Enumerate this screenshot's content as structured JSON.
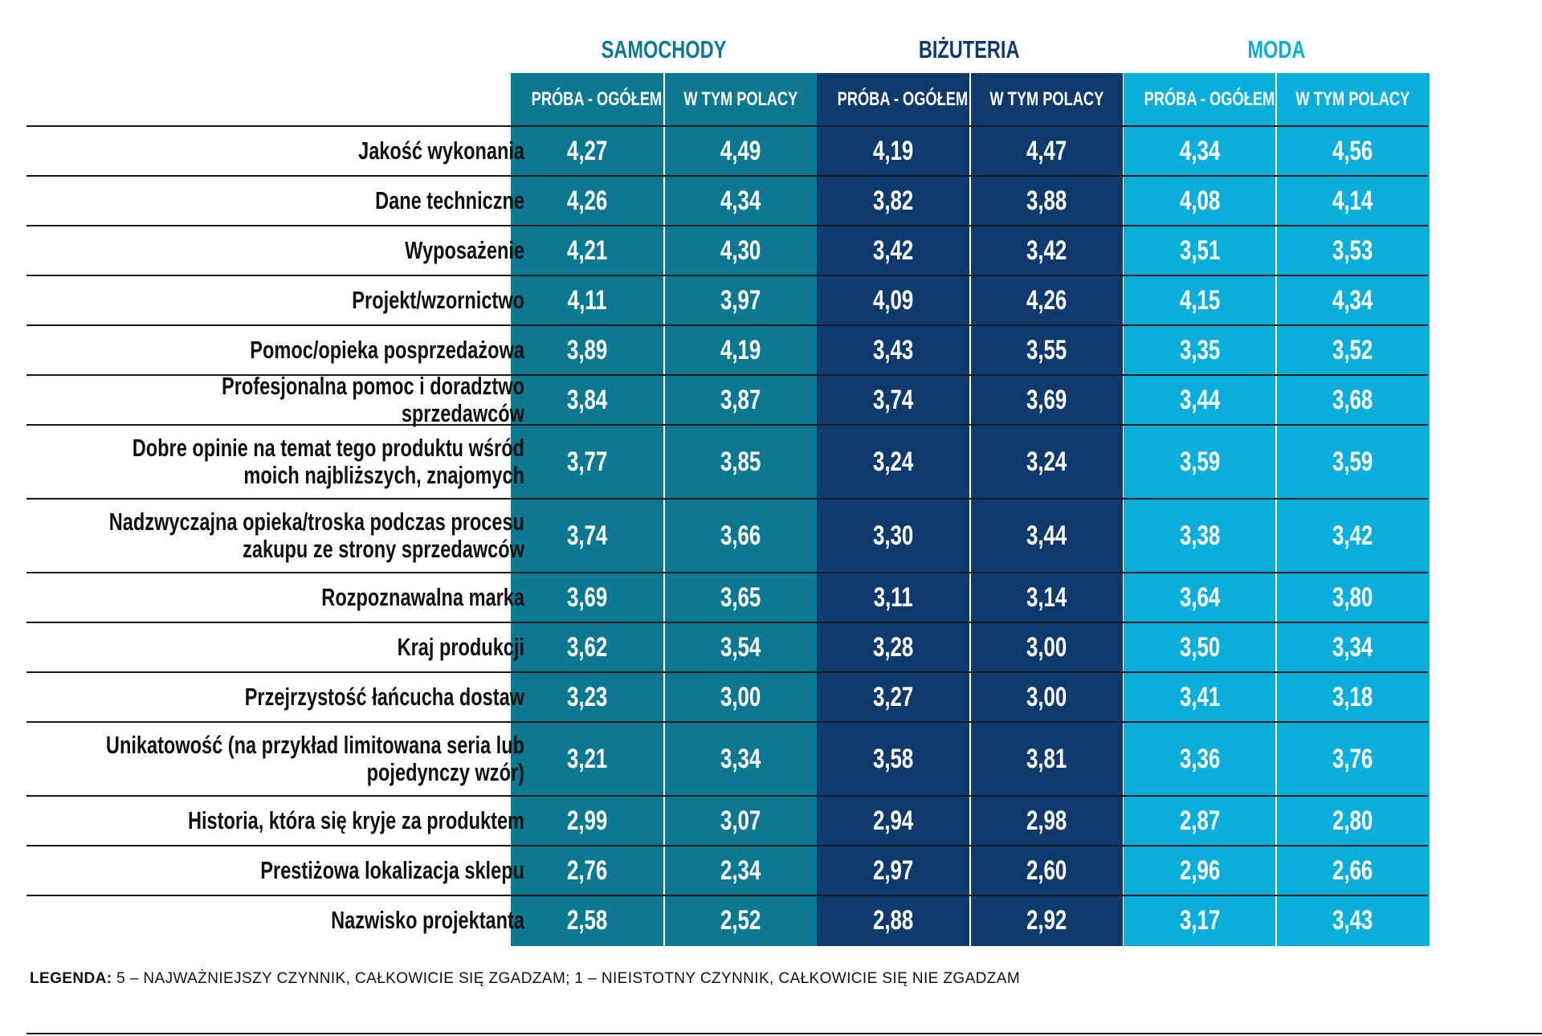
{
  "groups": [
    {
      "title": "SAMOCHODY",
      "color": "#0c7891",
      "title_color": "#0c7891"
    },
    {
      "title": "BIŻUTERIA",
      "color": "#0f3a6b",
      "title_color": "#0f3a6b"
    },
    {
      "title": "MODA",
      "color": "#0aaedb",
      "title_color": "#0aaedb"
    }
  ],
  "sub_headers": [
    "PRÓBA - OGÓŁEM",
    "W TYM POLACY"
  ],
  "chart_data": {
    "type": "table",
    "columns": [
      "SAMOCHODY / PRÓBA - OGÓŁEM",
      "SAMOCHODY / W TYM POLACY",
      "BIŻUTERIA / PRÓBA - OGÓŁEM",
      "BIŻUTERIA / W TYM POLACY",
      "MODA / PRÓBA - OGÓŁEM",
      "MODA / W TYM POLACY"
    ],
    "rows": [
      {
        "label": "Jakość wykonania",
        "values": [
          "4,27",
          "4,49",
          "4,19",
          "4,47",
          "4,34",
          "4,56"
        ]
      },
      {
        "label": "Dane techniczne",
        "values": [
          "4,26",
          "4,34",
          "3,82",
          "3,88",
          "4,08",
          "4,14"
        ]
      },
      {
        "label": "Wyposażenie",
        "values": [
          "4,21",
          "4,30",
          "3,42",
          "3,42",
          "3,51",
          "3,53"
        ]
      },
      {
        "label": "Projekt/wzornictwo",
        "values": [
          "4,11",
          "3,97",
          "4,09",
          "4,26",
          "4,15",
          "4,34"
        ]
      },
      {
        "label": "Pomoc/opieka posprzedażowa",
        "values": [
          "3,89",
          "4,19",
          "3,43",
          "3,55",
          "3,35",
          "3,52"
        ]
      },
      {
        "label": "Profesjonalna pomoc i doradztwo sprzedawców",
        "values": [
          "3,84",
          "3,87",
          "3,74",
          "3,69",
          "3,44",
          "3,68"
        ]
      },
      {
        "label": "Dobre opinie na temat tego produktu wśród moich najbliższych, znajomych",
        "values": [
          "3,77",
          "3,85",
          "3,24",
          "3,24",
          "3,59",
          "3,59"
        ]
      },
      {
        "label": "Nadzwyczajna opieka/troska podczas procesu zakupu ze strony sprzedawców",
        "values": [
          "3,74",
          "3,66",
          "3,30",
          "3,44",
          "3,38",
          "3,42"
        ]
      },
      {
        "label": "Rozpoznawalna marka",
        "values": [
          "3,69",
          "3,65",
          "3,11",
          "3,14",
          "3,64",
          "3,80"
        ]
      },
      {
        "label": "Kraj produkcji",
        "values": [
          "3,62",
          "3,54",
          "3,28",
          "3,00",
          "3,50",
          "3,34"
        ]
      },
      {
        "label": "Przejrzystość łańcucha dostaw",
        "values": [
          "3,23",
          "3,00",
          "3,27",
          "3,00",
          "3,41",
          "3,18"
        ]
      },
      {
        "label": "Unikatowość (na przykład limitowana seria lub pojedynczy wzór)",
        "values": [
          "3,21",
          "3,34",
          "3,58",
          "3,81",
          "3,36",
          "3,76"
        ]
      },
      {
        "label": "Historia, która się kryje za produktem",
        "values": [
          "2,99",
          "3,07",
          "2,94",
          "2,98",
          "2,87",
          "2,80"
        ]
      },
      {
        "label": "Prestiżowa lokalizacja sklepu",
        "values": [
          "2,76",
          "2,34",
          "2,97",
          "2,60",
          "2,96",
          "2,66"
        ]
      },
      {
        "label": "Nazwisko projektanta",
        "values": [
          "2,58",
          "2,52",
          "2,88",
          "2,92",
          "3,17",
          "3,43"
        ]
      }
    ]
  },
  "legend": {
    "label": "LEGENDA:",
    "text": " 5 – NAJWAŻNIEJSZY CZYNNIK, CAŁKOWICIE SIĘ ZGADZAM; 1 – NIEISTOTNY CZYNNIK, CAŁKOWICIE SIĘ NIE ZGADZAM"
  }
}
